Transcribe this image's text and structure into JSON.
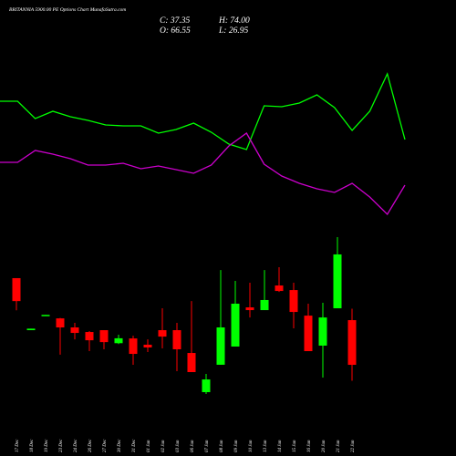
{
  "chart_data": [
    {
      "type": "line",
      "title": "BRITANNIA 5900.00 PE Options Chart MunafaSutra.com",
      "annotations": [
        "C: 37.35",
        "H: 74.00",
        "O: 66.55",
        "L: 26.95"
      ],
      "series": [
        {
          "color": "#00ff00",
          "values": [
            189,
            189,
            170,
            178,
            172,
            168,
            163,
            162,
            162,
            154,
            158,
            165,
            155,
            142,
            136,
            184,
            183,
            187,
            196,
            182,
            157,
            178,
            219,
            147
          ]
        },
        {
          "color": "#cc00cc",
          "values": [
            122,
            122,
            135,
            131,
            126,
            119,
            119,
            121,
            115,
            118,
            114,
            110,
            119,
            140,
            154,
            120,
            107,
            99,
            93,
            89,
            99,
            84,
            65,
            97
          ]
        }
      ]
    },
    {
      "type": "candlestick",
      "categories": [
        "17 Dec",
        "18 Dec",
        "19 Dec",
        "23 Dec",
        "24 Dec",
        "26 Dec",
        "27 Dec",
        "30 Dec",
        "31 Dec",
        "01 Jan",
        "02 Jan",
        "03 Jan",
        "06 Jan",
        "07 Jan",
        "08 Jan",
        "09 Jan",
        "10 Jan",
        "13 Jan",
        "14 Jan",
        "15 Jan",
        "16 Jan",
        "20 Jan",
        "21 Jan",
        "22 Jan"
      ],
      "open": [
        94,
        60,
        69.5,
        67.7,
        61.8,
        58.8,
        60,
        51.5,
        54.6,
        50.5,
        60,
        60,
        45.1,
        19.5,
        37.4,
        49.3,
        74.9,
        73.1,
        89.2,
        86.2,
        69.5,
        49.9,
        74.3,
        66.55
      ],
      "close": [
        79,
        61,
        70,
        61.8,
        58.2,
        53.4,
        52.2,
        54.7,
        44.5,
        48.7,
        55.8,
        47.5,
        32.6,
        27.8,
        61.8,
        77.3,
        73.1,
        79.7,
        85.6,
        71.9,
        46.3,
        68.3,
        109.5,
        37.35
      ],
      "high": [
        94,
        61,
        70,
        68,
        64.8,
        59.4,
        60,
        57,
        56.4,
        54,
        74.3,
        64.8,
        79,
        31.4,
        99.3,
        92.2,
        91,
        99.3,
        101.1,
        91,
        77.3,
        77.9,
        120.8,
        74
      ],
      "low": [
        73,
        60,
        69.5,
        44,
        54,
        46.3,
        47.5,
        50.9,
        37.4,
        45.7,
        48.1,
        33.2,
        32.6,
        18.3,
        37.4,
        49.3,
        68.3,
        73.1,
        85,
        61.2,
        46.3,
        29,
        74.3,
        26.95
      ],
      "up_color": "#00ff00",
      "down_color": "#ff0000"
    }
  ]
}
